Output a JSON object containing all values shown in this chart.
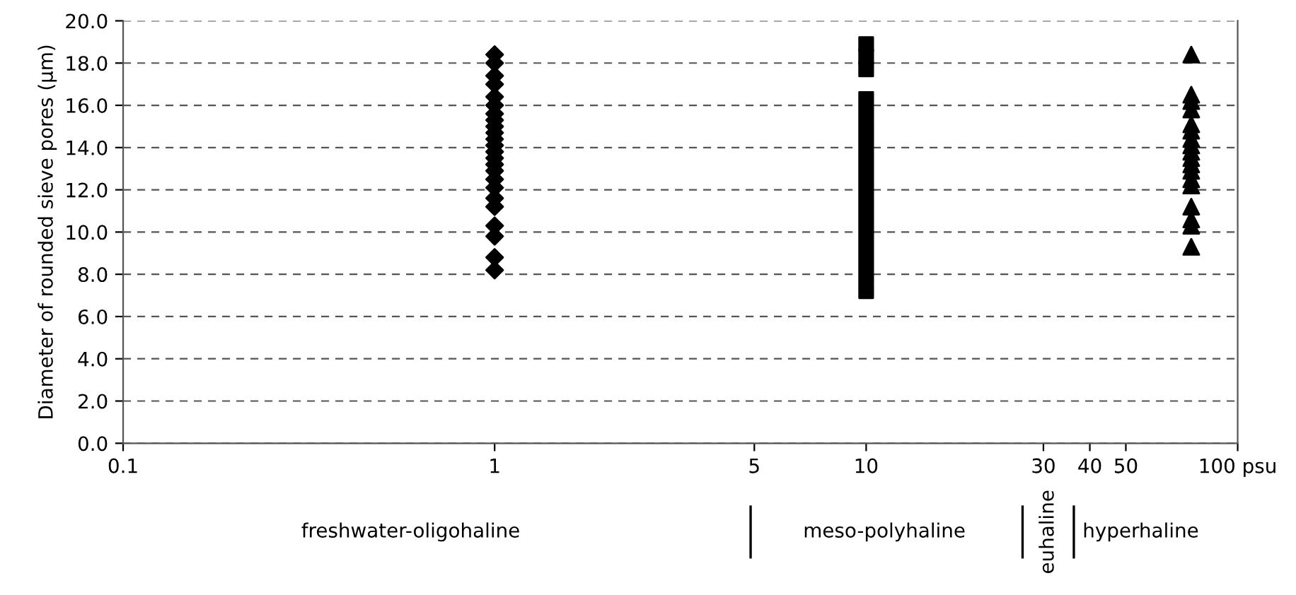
{
  "chart_data": {
    "type": "scatter",
    "ylabel": "Diameter of rounded sieve pores (µm)",
    "log": "x",
    "grid": "y",
    "xlim": [
      0.1,
      100
    ],
    "xticks": [
      0.1,
      1,
      5,
      10,
      30,
      40,
      50,
      {
        "value": 100,
        "label": "100 psu"
      }
    ],
    "ylim": [
      0,
      20
    ],
    "yticks": [
      {
        "value": 0,
        "label": "0.0"
      },
      {
        "value": 2,
        "label": "2.0"
      },
      {
        "value": 4,
        "label": "4.0"
      },
      {
        "value": 6,
        "label": "6.0"
      },
      {
        "value": 8,
        "label": "8.0"
      },
      {
        "value": 10,
        "label": "10.0"
      },
      {
        "value": 12,
        "label": "12.0"
      },
      {
        "value": 14,
        "label": "14.0"
      },
      {
        "value": 16,
        "label": "16.0"
      },
      {
        "value": 18,
        "label": "18.0"
      },
      {
        "value": 20,
        "label": "20.0"
      }
    ],
    "series": [
      {
        "color": "#000000",
        "marker": "diamond",
        "x": [
          1,
          1,
          1,
          1,
          1,
          1,
          1,
          1,
          1,
          1,
          1,
          1,
          1,
          1,
          1,
          1,
          1,
          1,
          1,
          1,
          1,
          1,
          1,
          1
        ],
        "values": [
          8.2,
          8.8,
          9.8,
          10.3,
          11.2,
          11.6,
          12.1,
          12.5,
          12.9,
          13.2,
          13.5,
          13.8,
          14.1,
          14.4,
          14.7,
          15.0,
          15.3,
          15.6,
          16.0,
          16.4,
          17.0,
          17.4,
          18.0,
          18.4
        ]
      },
      {
        "color": "#000000",
        "marker": "square",
        "x": [
          10,
          10,
          10,
          10,
          10,
          10,
          10,
          10,
          10,
          10,
          10,
          10,
          10,
          10,
          10,
          10,
          10
        ],
        "values": [
          7.2,
          7.9,
          8.6,
          9.3,
          10.0,
          10.7,
          11.4,
          12.1,
          12.8,
          13.5,
          14.2,
          14.9,
          15.6,
          16.3,
          17.7,
          18.3,
          18.9
        ]
      },
      {
        "color": "#000000",
        "marker": "triangle",
        "x": [
          75,
          75,
          75,
          75,
          75,
          75,
          75,
          75,
          75,
          75,
          75,
          75,
          75,
          75,
          75,
          75,
          75,
          75
        ],
        "values": [
          9.3,
          10.3,
          10.6,
          11.2,
          12.2,
          12.5,
          12.9,
          13.2,
          13.5,
          13.8,
          14.1,
          14.4,
          14.8,
          15.1,
          15.8,
          16.2,
          16.5,
          18.4
        ]
      }
    ],
    "annotations": [
      "freshwater-oligohaline",
      "meso-polyhaline",
      "euhaline",
      "hyperhaline"
    ]
  }
}
